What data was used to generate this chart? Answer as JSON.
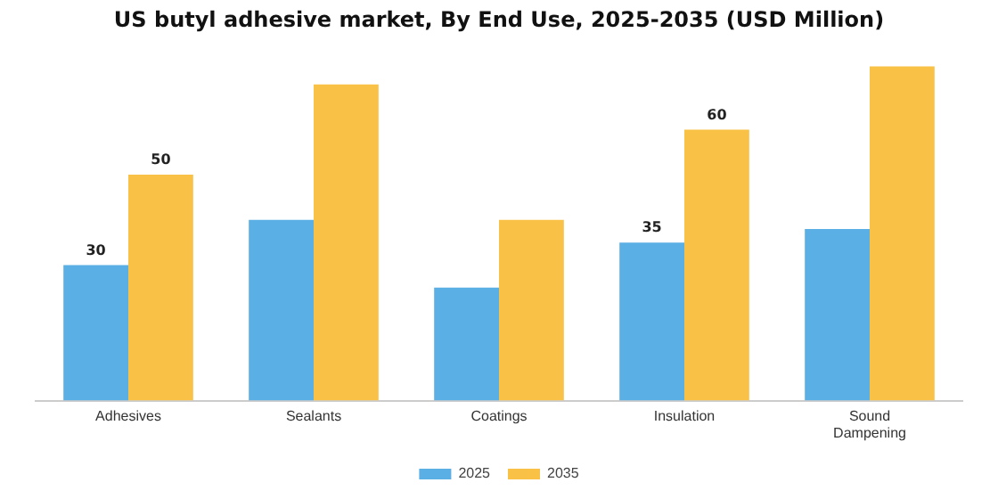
{
  "chart_data": {
    "type": "bar",
    "title": "US butyl adhesive market, By End Use, 2025-2035 (USD Million)",
    "categories": [
      "Adhesives",
      "Sealants",
      "Coatings",
      "Insulation",
      "Sound Dampening"
    ],
    "series": [
      {
        "name": "2025",
        "color": "#5aafe4",
        "values": [
          30,
          40,
          25,
          35,
          38
        ],
        "value_labels": [
          "30",
          null,
          null,
          "35",
          null
        ]
      },
      {
        "name": "2035",
        "color": "#f9c146",
        "values": [
          50,
          70,
          40,
          60,
          74
        ],
        "value_labels": [
          "50",
          null,
          null,
          "60",
          null
        ]
      }
    ],
    "grid": false,
    "legend": "bottom"
  }
}
